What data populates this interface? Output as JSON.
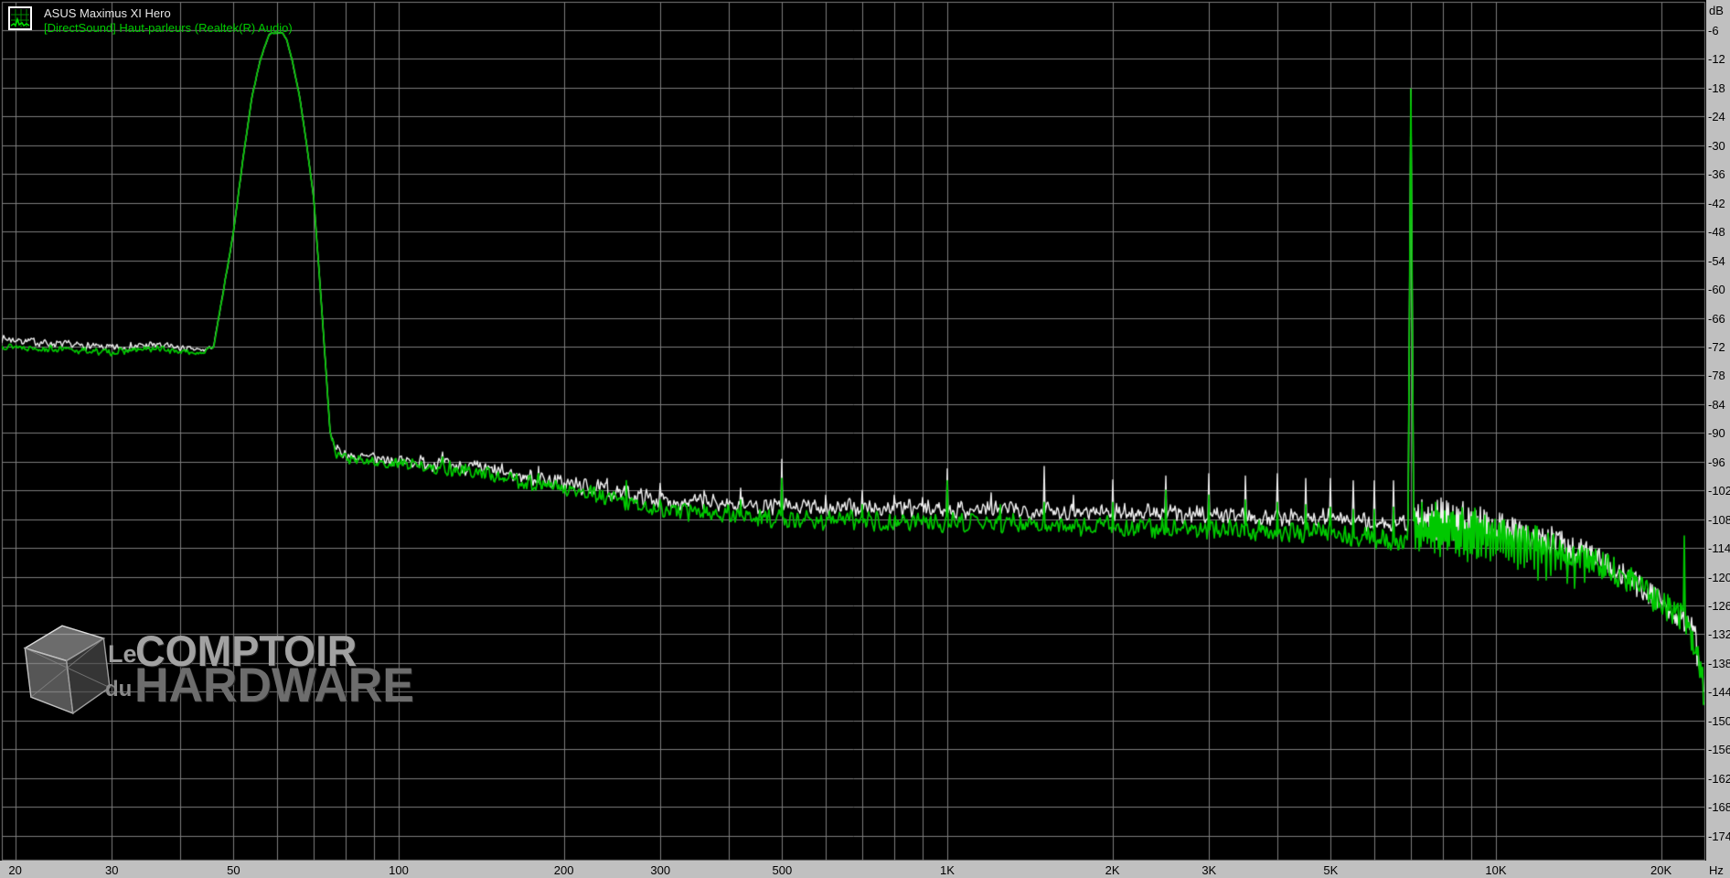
{
  "legend": {
    "line1": "ASUS Maximus XI Hero",
    "line2": "[DirectSound] Haut-parleurs (Realtek(R) Audio)"
  },
  "axis": {
    "y_unit": "dB",
    "x_unit": "Hz",
    "y_tick_labels": [
      "-6",
      "-12",
      "-18",
      "-24",
      "-30",
      "-36",
      "-42",
      "-48",
      "-54",
      "-60",
      "-66",
      "-72",
      "-78",
      "-84",
      "-90",
      "-96",
      "-102",
      "-108",
      "-114",
      "-120",
      "-126",
      "-132",
      "-138",
      "-144",
      "-150",
      "-156",
      "-162",
      "-168",
      "-174"
    ],
    "y_tick_values": [
      -6,
      -12,
      -18,
      -24,
      -30,
      -36,
      -42,
      -48,
      -54,
      -60,
      -66,
      -72,
      -78,
      -84,
      -90,
      -96,
      -102,
      -108,
      -114,
      -120,
      -126,
      -132,
      -138,
      -144,
      -150,
      -156,
      -162,
      -168,
      -174
    ],
    "x_tick_labels": [
      {
        "value": 20,
        "label": "20"
      },
      {
        "value": 30,
        "label": "30"
      },
      {
        "value": 50,
        "label": "50"
      },
      {
        "value": 100,
        "label": "100"
      },
      {
        "value": 200,
        "label": "200"
      },
      {
        "value": 300,
        "label": "300"
      },
      {
        "value": 500,
        "label": "500"
      },
      {
        "value": 1000,
        "label": "1K"
      },
      {
        "value": 2000,
        "label": "2K"
      },
      {
        "value": 3000,
        "label": "3K"
      },
      {
        "value": 5000,
        "label": "5K"
      },
      {
        "value": 10000,
        "label": "10K"
      },
      {
        "value": 20000,
        "label": "20K"
      }
    ],
    "x_gridlines": [
      20,
      30,
      40,
      50,
      60,
      70,
      80,
      90,
      100,
      200,
      300,
      400,
      500,
      600,
      700,
      800,
      900,
      1000,
      2000,
      3000,
      4000,
      5000,
      6000,
      7000,
      8000,
      9000,
      10000,
      20000
    ],
    "x_range_hz": [
      18.9,
      24000
    ],
    "y_range_db": [
      -179,
      0
    ]
  },
  "colors": {
    "background": "#000000",
    "grid": "#7d7d7d",
    "white_channel": "#f0f0f0",
    "green_channel": "#00c800",
    "legend_text": "#e6e6e6",
    "legend_text_green": "#00cc00",
    "gutter_bg": "#c0c0c0",
    "gutter_text": "#000000"
  },
  "watermark": {
    "word1": "Le",
    "word2": "COMPTOIR",
    "word3": "du",
    "word4": "HARDWARE"
  },
  "chart_data": {
    "type": "line",
    "x_scale": "log",
    "xlabel": "Hz",
    "ylabel": "dB",
    "x_range_hz": [
      18.9,
      24000
    ],
    "y_range_db": [
      -179,
      0
    ],
    "grid": true,
    "legend_position": "top-left",
    "description": "Audio spectrum (IMD + noise test): 60 Hz tone at -6.6 dB and 7 kHz tone at -18.3 dB over a declining noise floor; harmonic/IMD spikes at 500 Hz multiples and a 60 Hz-spaced comb above 7 kHz; 22.05 kHz spur on green channel.",
    "series": [
      {
        "name": "white",
        "color_key": "white_channel",
        "seed": 7,
        "floor_points_f_db_rough": [
          [
            18.9,
            -70.3,
            1
          ],
          [
            24,
            -71.5,
            1
          ],
          [
            30,
            -72.3,
            1
          ],
          [
            36,
            -71.6,
            1
          ],
          [
            41,
            -72.5,
            0.8
          ],
          [
            44,
            -72.8,
            0.6
          ],
          [
            46,
            -72,
            0.3
          ],
          [
            48,
            -60,
            0.3
          ],
          [
            50,
            -48,
            0.3
          ],
          [
            52,
            -33,
            0.2
          ],
          [
            54,
            -20,
            0.2
          ],
          [
            56,
            -12,
            0.2
          ],
          [
            58,
            -7,
            0.15
          ],
          [
            58.5,
            -6.6,
            0.1
          ],
          [
            61.5,
            -6.6,
            0.1
          ],
          [
            62.5,
            -8,
            0.15
          ],
          [
            64,
            -12.4,
            0.2
          ],
          [
            66,
            -20,
            0.2
          ],
          [
            68,
            -30,
            0.2
          ],
          [
            70,
            -41,
            0.3
          ],
          [
            72,
            -60,
            0.3
          ],
          [
            73.5,
            -75,
            0.4
          ],
          [
            75,
            -90,
            0.6
          ],
          [
            77,
            -93.5,
            1.2
          ],
          [
            82,
            -95,
            1.5
          ],
          [
            95,
            -95.5,
            1.6
          ],
          [
            120,
            -96.5,
            1.8
          ],
          [
            160,
            -98.5,
            2
          ],
          [
            200,
            -100.5,
            2.1
          ],
          [
            300,
            -104,
            2.1
          ],
          [
            500,
            -105.5,
            2.2
          ],
          [
            800,
            -105.8,
            2.2
          ],
          [
            1200,
            -106,
            2.2
          ],
          [
            2000,
            -106.5,
            2.2
          ],
          [
            3000,
            -107,
            2.3
          ],
          [
            5000,
            -107.8,
            2.4
          ],
          [
            7000,
            -109.5,
            2.5
          ],
          [
            9000,
            -111.5,
            2.6
          ],
          [
            12000,
            -115.5,
            2.8
          ],
          [
            15000,
            -120,
            3
          ],
          [
            18000,
            -126,
            3.2
          ],
          [
            20000,
            -130,
            3.4
          ],
          [
            21500,
            -132.5,
            3.6
          ],
          [
            23000,
            -135.5,
            4.5
          ],
          [
            23988,
            -140.5,
            5
          ]
        ],
        "spikes_f_db_fall": [
          [
            120,
            -94,
            8
          ],
          [
            180,
            -97,
            8
          ],
          [
            240,
            -99.5,
            8
          ],
          [
            300,
            -100.5,
            8
          ],
          [
            360,
            -102,
            8
          ],
          [
            420,
            -101.5,
            8
          ],
          [
            500,
            -95.5,
            10
          ],
          [
            600,
            -103,
            8
          ],
          [
            700,
            -102,
            8
          ],
          [
            800,
            -103,
            8
          ],
          [
            900,
            -103.5,
            8
          ],
          [
            1000,
            -97.5,
            10
          ],
          [
            1200,
            -102.5,
            8
          ],
          [
            1500,
            -97,
            10
          ],
          [
            1700,
            -103,
            8
          ],
          [
            2000,
            -99.8,
            10
          ],
          [
            2500,
            -99,
            10
          ],
          [
            3000,
            -98.5,
            10
          ],
          [
            3500,
            -99,
            10
          ],
          [
            4000,
            -98.5,
            10
          ],
          [
            4500,
            -99.5,
            10
          ],
          [
            5000,
            -99.5,
            10
          ],
          [
            5500,
            -100,
            10
          ],
          [
            6000,
            -100,
            10
          ],
          [
            6500,
            -100,
            10
          ],
          [
            7000,
            -18.3,
            30
          ]
        ],
        "comb": {
          "f_start": 7100,
          "f_end": 23200,
          "spacing_hz": 60,
          "boost_db_min": 2,
          "boost_db_max": 7
        }
      },
      {
        "name": "green",
        "color_key": "green_channel",
        "seed": 13,
        "floor_points_f_db_rough": [
          [
            18.9,
            -71.8,
            0.8
          ],
          [
            24,
            -72.6,
            0.8
          ],
          [
            30,
            -73.2,
            0.8
          ],
          [
            36,
            -72.4,
            0.8
          ],
          [
            41,
            -73.2,
            0.7
          ],
          [
            44,
            -73.2,
            0.5
          ],
          [
            46,
            -72,
            0.3
          ],
          [
            48,
            -60,
            0.3
          ],
          [
            50,
            -48,
            0.3
          ],
          [
            52,
            -33,
            0.2
          ],
          [
            54,
            -20,
            0.2
          ],
          [
            56,
            -12,
            0.2
          ],
          [
            58,
            -7,
            0.15
          ],
          [
            58.5,
            -6.6,
            0.1
          ],
          [
            61.5,
            -6.6,
            0.1
          ],
          [
            62.5,
            -8,
            0.15
          ],
          [
            64,
            -12.4,
            0.2
          ],
          [
            66,
            -20,
            0.2
          ],
          [
            68,
            -30,
            0.2
          ],
          [
            70,
            -41,
            0.3
          ],
          [
            72,
            -60,
            0.3
          ],
          [
            73.5,
            -75,
            0.4
          ],
          [
            75,
            -90,
            0.6
          ],
          [
            77,
            -94.2,
            1.2
          ],
          [
            82,
            -95.8,
            1.5
          ],
          [
            95,
            -96.3,
            1.6
          ],
          [
            120,
            -97.2,
            1.8
          ],
          [
            160,
            -99.5,
            2
          ],
          [
            200,
            -101.8,
            2.1
          ],
          [
            300,
            -106,
            2.2
          ],
          [
            500,
            -108,
            2.3
          ],
          [
            800,
            -108.5,
            2.3
          ],
          [
            1200,
            -108.8,
            2.3
          ],
          [
            2000,
            -109.5,
            2.3
          ],
          [
            3000,
            -110.2,
            2.4
          ],
          [
            5000,
            -111,
            2.5
          ],
          [
            7000,
            -112.5,
            2.6
          ],
          [
            9000,
            -114.5,
            2.8
          ],
          [
            12000,
            -118.5,
            3
          ],
          [
            15000,
            -122.5,
            3.2
          ],
          [
            18000,
            -127.5,
            3.5
          ],
          [
            20000,
            -131.5,
            3.8
          ],
          [
            21000,
            -133.5,
            4
          ],
          [
            22000,
            -135,
            5
          ],
          [
            22800,
            -139.5,
            6
          ],
          [
            23500,
            -144,
            6
          ],
          [
            23988,
            -147,
            6
          ]
        ],
        "spikes_f_db_fall": [
          [
            120,
            -95,
            8
          ],
          [
            180,
            -98.5,
            8
          ],
          [
            260,
            -100,
            8
          ],
          [
            300,
            -104,
            8
          ],
          [
            360,
            -105,
            8
          ],
          [
            420,
            -104,
            8
          ],
          [
            500,
            -99.5,
            10
          ],
          [
            700,
            -105,
            8
          ],
          [
            1000,
            -100,
            10
          ],
          [
            1250,
            -105,
            8
          ],
          [
            1500,
            -104.5,
            8
          ],
          [
            2000,
            -104.5,
            10
          ],
          [
            2500,
            -102,
            10
          ],
          [
            3000,
            -103,
            10
          ],
          [
            3500,
            -104,
            10
          ],
          [
            4000,
            -104.5,
            10
          ],
          [
            4500,
            -105,
            10
          ],
          [
            5000,
            -105.5,
            10
          ],
          [
            5500,
            -106,
            10
          ],
          [
            6000,
            -106,
            10
          ],
          [
            6500,
            -105.5,
            10
          ],
          [
            7000,
            -18.3,
            30
          ],
          [
            22050,
            -111.5,
            18
          ]
        ],
        "comb": {
          "f_start": 7100,
          "f_end": 23800,
          "spacing_hz": 60,
          "boost_db_min": 3,
          "boost_db_max": 9
        }
      }
    ]
  }
}
